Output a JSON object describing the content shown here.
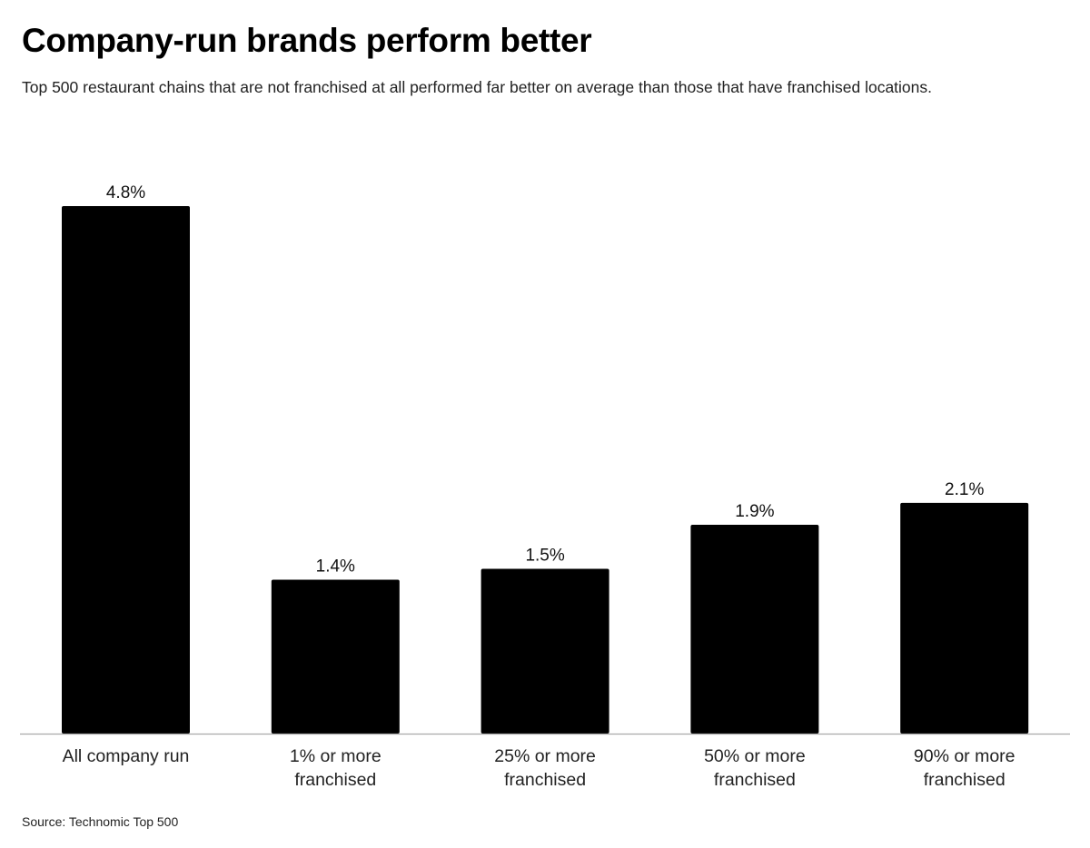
{
  "chart_data": {
    "type": "bar",
    "title": "Company-run brands perform better",
    "subtitle": "Top 500 restaurant chains that are not franchised at all performed far better on average than those that have franchised locations.",
    "categories": [
      "All company run",
      "1% or more franchised",
      "25% or more franchised",
      "50% or more franchised",
      "90% or more franchised"
    ],
    "category_lines": [
      [
        "All company run"
      ],
      [
        "1% or more",
        "franchised"
      ],
      [
        "25% or more",
        "franchised"
      ],
      [
        "50% or more",
        "franchised"
      ],
      [
        "90% or more",
        "franchised"
      ]
    ],
    "values": [
      4.8,
      1.4,
      1.5,
      1.9,
      2.1
    ],
    "data_labels": [
      "4.8%",
      "1.4%",
      "1.5%",
      "1.9%",
      "2.1%"
    ],
    "xlabel": "",
    "ylabel": "",
    "ylim": [
      0,
      4.8
    ],
    "grid": false,
    "bar_color": "#000000",
    "axis_color": "#aaaaaa",
    "source": "Source: Technomic Top 500"
  }
}
